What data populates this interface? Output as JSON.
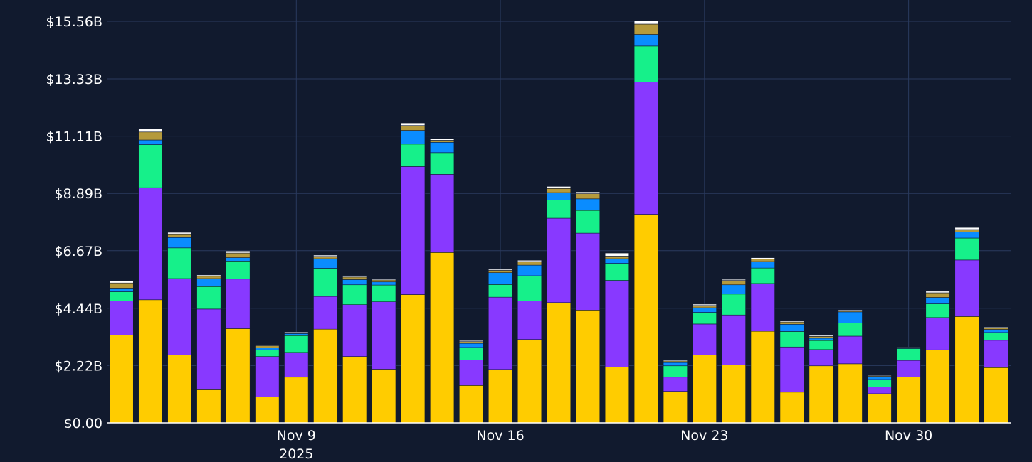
{
  "chart_data": {
    "type": "bar",
    "stacked": true,
    "grid": true,
    "legend": "none",
    "y_ticks": [
      0,
      2.22,
      4.44,
      6.67,
      8.89,
      11.11,
      13.33,
      15.56
    ],
    "y_tick_labels": [
      "$0.00",
      "$2.22B",
      "$4.44B",
      "$6.67B",
      "$8.89B",
      "$11.11B",
      "$13.33B",
      "$15.56B"
    ],
    "ylim": [
      0,
      15.56
    ],
    "x_ticks": [
      {
        "index": 6.5,
        "label": "Nov 9",
        "sublabel": "2025"
      },
      {
        "index": 13.5,
        "label": "Nov 16",
        "sublabel": ""
      },
      {
        "index": 20.5,
        "label": "Nov 23",
        "sublabel": ""
      },
      {
        "index": 27.5,
        "label": "Nov 30",
        "sublabel": ""
      }
    ],
    "series": [
      {
        "color": "#ffcc00",
        "values": [
          3.4,
          4.77,
          2.63,
          1.31,
          3.65,
          1.01,
          1.77,
          3.63,
          2.57,
          2.08,
          4.97,
          6.6,
          1.45,
          2.07,
          3.23,
          4.66,
          4.37,
          2.16,
          8.08,
          1.22,
          2.63,
          2.25,
          3.55,
          1.19,
          2.21,
          2.29,
          1.13,
          1.78,
          2.83,
          4.12,
          2.14
        ]
      },
      {
        "color": "#8839ff",
        "values": [
          1.32,
          4.34,
          2.96,
          3.1,
          1.92,
          1.56,
          0.96,
          1.27,
          2.01,
          2.61,
          4.96,
          3.03,
          0.99,
          2.8,
          1.49,
          3.27,
          2.98,
          3.36,
          5.12,
          0.55,
          1.2,
          1.93,
          1.85,
          1.75,
          0.63,
          1.07,
          0.26,
          0.64,
          1.25,
          2.19,
          1.06
        ]
      },
      {
        "color": "#16f08a",
        "values": [
          0.36,
          1.67,
          1.19,
          0.87,
          0.7,
          0.26,
          0.65,
          1.09,
          0.77,
          0.65,
          0.87,
          0.84,
          0.48,
          0.49,
          0.98,
          0.7,
          0.88,
          0.66,
          1.4,
          0.44,
          0.45,
          0.81,
          0.6,
          0.6,
          0.35,
          0.51,
          0.29,
          0.46,
          0.53,
          0.85,
          0.3
        ]
      },
      {
        "color": "#0a8cff",
        "values": [
          0.14,
          0.18,
          0.4,
          0.31,
          0.13,
          0.08,
          0.08,
          0.37,
          0.2,
          0.12,
          0.53,
          0.4,
          0.16,
          0.46,
          0.41,
          0.29,
          0.45,
          0.18,
          0.45,
          0.13,
          0.18,
          0.36,
          0.25,
          0.28,
          0.09,
          0.43,
          0.12,
          0.03,
          0.25,
          0.24,
          0.12
        ]
      },
      {
        "color": "#b59a3c",
        "values": [
          0.2,
          0.31,
          0.14,
          0.09,
          0.18,
          0.08,
          0.03,
          0.09,
          0.1,
          0.08,
          0.19,
          0.08,
          0.07,
          0.09,
          0.14,
          0.16,
          0.2,
          0.1,
          0.4,
          0.06,
          0.09,
          0.17,
          0.1,
          0.09,
          0.07,
          0.05,
          0.03,
          0.01,
          0.18,
          0.09,
          0.06
        ]
      },
      {
        "color": "#ffffff",
        "values": [
          0.08,
          0.12,
          0.06,
          0.05,
          0.08,
          0.04,
          0.03,
          0.05,
          0.06,
          0.04,
          0.1,
          0.05,
          0.04,
          0.04,
          0.05,
          0.08,
          0.07,
          0.12,
          0.13,
          0.04,
          0.05,
          0.04,
          0.05,
          0.05,
          0.04,
          0.03,
          0.03,
          0.02,
          0.06,
          0.08,
          0.03
        ]
      }
    ]
  }
}
